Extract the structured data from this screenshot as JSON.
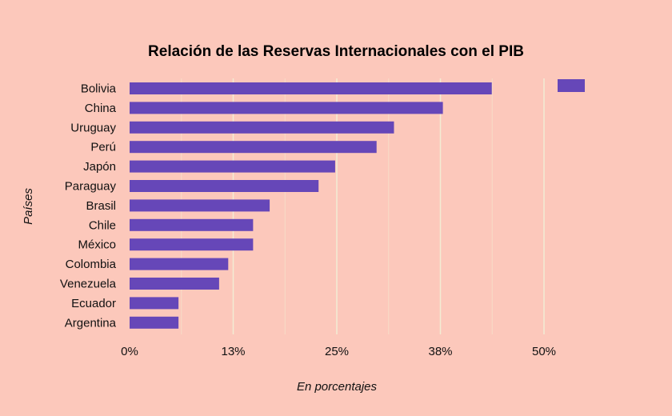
{
  "chart_data": {
    "type": "bar",
    "orientation": "horizontal",
    "title": "Relación de las Reservas Internacionales con el PIB",
    "xlabel": "En porcentajes",
    "ylabel": "Países",
    "categories": [
      "Bolivia",
      "China",
      "Uruguay",
      "Perú",
      "Japón",
      "Paraguay",
      "Brasil",
      "Chile",
      "México",
      "Colombia",
      "Venezuela",
      "Ecuador",
      "Argentina"
    ],
    "series": [
      {
        "values": [
          43.7,
          37.8,
          31.9,
          29.8,
          24.8,
          22.8,
          16.9,
          14.9,
          14.9,
          11.9,
          10.8,
          5.9,
          5.9
        ]
      }
    ],
    "xlim": [
      0,
      50
    ],
    "x_ticks": [
      "0%",
      "13%",
      "25%",
      "38%",
      "50%"
    ],
    "grid": "vertical",
    "legend": "top-right",
    "colors": {
      "bar": "#6647b8",
      "background": "#fcc8bb",
      "grid": "#f2ecd4"
    }
  }
}
